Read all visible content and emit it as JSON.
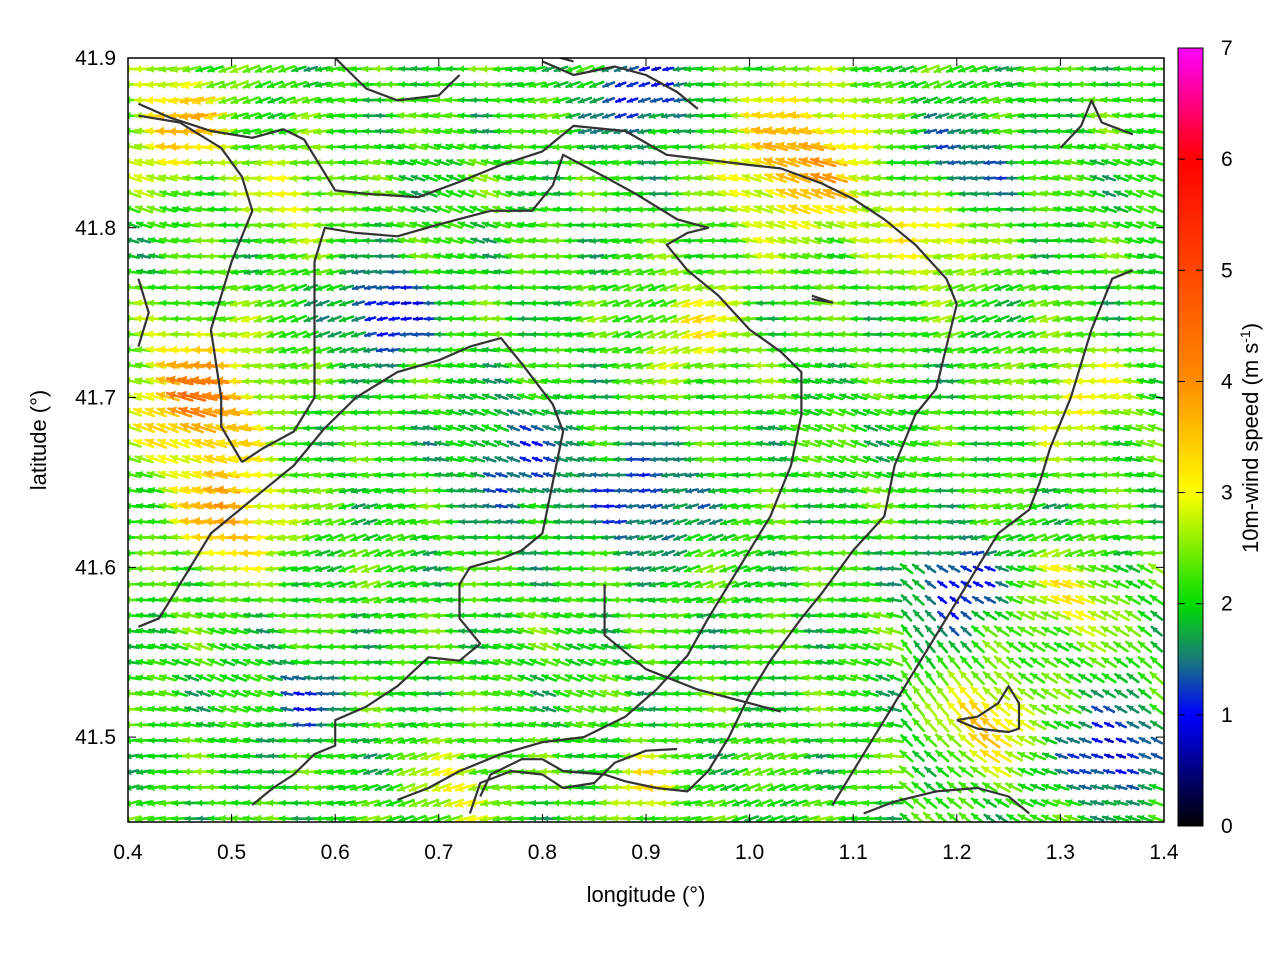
{
  "chart_data": {
    "type": "vector-field",
    "xlabel": "longitude (°)",
    "ylabel": "latitude (°)",
    "xlim": [
      0.4,
      1.4
    ],
    "ylim": [
      41.45,
      41.9
    ],
    "x_ticks": [
      "0.4",
      "0.5",
      "0.6",
      "0.7",
      "0.8",
      "0.9",
      "1.0",
      "1.1",
      "1.2",
      "1.3",
      "1.4"
    ],
    "y_ticks": [
      "41.5",
      "41.6",
      "41.7",
      "41.8",
      "41.9"
    ],
    "colorbar": {
      "label_main": "10m-wind speed (m s",
      "label_sup": "-1",
      "label_end": ")",
      "range": [
        0,
        7
      ],
      "ticks": [
        "0",
        "1",
        "2",
        "3",
        "4",
        "5",
        "6",
        "7"
      ],
      "palette": [
        "#000000",
        "#0000ff",
        "#1a7a7a",
        "#00dd00",
        "#ffff00",
        "#ff8c00",
        "#ff0000",
        "#ff00ff"
      ]
    },
    "wind_direction": "mostly from east (vectors point west)",
    "grid": false,
    "speed_regions": [
      {
        "lon": 0.47,
        "lat": 41.7,
        "speed": 4.2,
        "spread": 0.06
      },
      {
        "lon": 0.5,
        "lat": 41.63,
        "speed": 3.8,
        "spread": 0.05
      },
      {
        "lon": 0.45,
        "lat": 41.86,
        "speed": 3.6,
        "spread": 0.05
      },
      {
        "lon": 0.56,
        "lat": 41.82,
        "speed": 3.0,
        "spread": 0.04
      },
      {
        "lon": 1.05,
        "lat": 41.84,
        "speed": 3.8,
        "spread": 0.07
      },
      {
        "lon": 1.18,
        "lat": 41.8,
        "speed": 3.5,
        "spread": 0.05
      },
      {
        "lon": 0.95,
        "lat": 41.74,
        "speed": 3.0,
        "spread": 0.05
      },
      {
        "lon": 1.32,
        "lat": 41.7,
        "speed": 3.0,
        "spread": 0.05
      },
      {
        "lon": 1.23,
        "lat": 41.51,
        "speed": 3.6,
        "spread": 0.04
      },
      {
        "lon": 1.31,
        "lat": 41.58,
        "speed": 3.1,
        "spread": 0.04
      },
      {
        "lon": 0.72,
        "lat": 41.47,
        "speed": 3.0,
        "spread": 0.04
      },
      {
        "lon": 0.9,
        "lat": 41.47,
        "speed": 3.2,
        "spread": 0.03
      },
      {
        "lon": 0.78,
        "lat": 41.66,
        "speed": 1.3,
        "spread": 0.06
      },
      {
        "lon": 0.9,
        "lat": 41.64,
        "speed": 1.1,
        "spread": 0.05
      },
      {
        "lon": 0.65,
        "lat": 41.75,
        "speed": 0.7,
        "spread": 0.04
      },
      {
        "lon": 1.2,
        "lat": 41.83,
        "speed": 1.0,
        "spread": 0.05
      },
      {
        "lon": 1.2,
        "lat": 41.59,
        "speed": 0.8,
        "spread": 0.04
      },
      {
        "lon": 0.57,
        "lat": 41.52,
        "speed": 1.3,
        "spread": 0.04
      },
      {
        "lon": 0.9,
        "lat": 41.88,
        "speed": 1.0,
        "spread": 0.05
      },
      {
        "lon": 1.35,
        "lat": 41.49,
        "speed": 0.6,
        "spread": 0.04
      }
    ],
    "contours": [
      [
        [
          0.41,
          41.873
        ],
        [
          0.44,
          41.865
        ],
        [
          0.48,
          41.857
        ],
        [
          0.52,
          41.853
        ],
        [
          0.55,
          41.858
        ],
        [
          0.57,
          41.852
        ],
        [
          0.6,
          41.822
        ],
        [
          0.63,
          41.82
        ],
        [
          0.68,
          41.818
        ],
        [
          0.72,
          41.827
        ],
        [
          0.76,
          41.837
        ],
        [
          0.8,
          41.845
        ],
        [
          0.83,
          41.86
        ],
        [
          0.88,
          41.857
        ],
        [
          0.92,
          41.843
        ],
        [
          0.96,
          41.84
        ],
        [
          1.0,
          41.837
        ],
        [
          1.03,
          41.835
        ],
        [
          1.07,
          41.826
        ],
        [
          1.1,
          41.817
        ],
        [
          1.13,
          41.805
        ],
        [
          1.16,
          41.79
        ],
        [
          1.19,
          41.77
        ],
        [
          1.2,
          41.755
        ],
        [
          1.19,
          41.73
        ],
        [
          1.18,
          41.705
        ],
        [
          1.16,
          41.69
        ],
        [
          1.14,
          41.66
        ],
        [
          1.13,
          41.63
        ],
        [
          1.1,
          41.61
        ],
        [
          1.07,
          41.585
        ],
        [
          1.05,
          41.57
        ],
        [
          1.02,
          41.545
        ],
        [
          1.0,
          41.525
        ],
        [
          0.98,
          41.5
        ],
        [
          0.96,
          41.48
        ],
        [
          0.94,
          41.468
        ],
        [
          0.91,
          41.47
        ],
        [
          0.88,
          41.474
        ],
        [
          0.86,
          41.478
        ],
        [
          0.82,
          41.48
        ],
        [
          0.8,
          41.487
        ],
        [
          0.78,
          41.487
        ],
        [
          0.75,
          41.478
        ],
        [
          0.74,
          41.465
        ]
      ],
      [
        [
          0.41,
          41.866
        ],
        [
          0.45,
          41.862
        ],
        [
          0.49,
          41.847
        ],
        [
          0.51,
          41.83
        ],
        [
          0.52,
          41.81
        ],
        [
          0.5,
          41.78
        ],
        [
          0.49,
          41.76
        ],
        [
          0.48,
          41.74
        ],
        [
          0.49,
          41.7
        ],
        [
          0.49,
          41.683
        ],
        [
          0.51,
          41.662
        ]
      ],
      [
        [
          0.51,
          41.662
        ],
        [
          0.53,
          41.67
        ],
        [
          0.56,
          41.68
        ],
        [
          0.58,
          41.7
        ],
        [
          0.58,
          41.74
        ],
        [
          0.58,
          41.78
        ],
        [
          0.59,
          41.8
        ],
        [
          0.62,
          41.797
        ],
        [
          0.66,
          41.795
        ],
        [
          0.7,
          41.802
        ],
        [
          0.75,
          41.81
        ],
        [
          0.79,
          41.81
        ],
        [
          0.81,
          41.825
        ],
        [
          0.82,
          41.843
        ],
        [
          0.86,
          41.83
        ],
        [
          0.89,
          41.82
        ],
        [
          0.93,
          41.805
        ],
        [
          0.96,
          41.8
        ],
        [
          0.94,
          41.797
        ],
        [
          0.92,
          41.79
        ],
        [
          0.94,
          41.775
        ],
        [
          0.97,
          41.76
        ],
        [
          1.0,
          41.74
        ],
        [
          1.03,
          41.727
        ],
        [
          1.05,
          41.715
        ],
        [
          1.05,
          41.69
        ],
        [
          1.04,
          41.66
        ],
        [
          1.02,
          41.63
        ],
        [
          1.0,
          41.61
        ],
        [
          0.98,
          41.59
        ],
        [
          0.96,
          41.57
        ],
        [
          0.94,
          41.548
        ],
        [
          0.91,
          41.528
        ],
        [
          0.88,
          41.512
        ],
        [
          0.84,
          41.5
        ],
        [
          0.8,
          41.497
        ],
        [
          0.76,
          41.49
        ],
        [
          0.72,
          41.48
        ],
        [
          0.69,
          41.47
        ],
        [
          0.66,
          41.463
        ]
      ],
      [
        [
          0.41,
          41.565
        ],
        [
          0.43,
          41.57
        ],
        [
          0.46,
          41.6
        ],
        [
          0.48,
          41.62
        ],
        [
          0.52,
          41.64
        ],
        [
          0.56,
          41.66
        ],
        [
          0.59,
          41.682
        ],
        [
          0.62,
          41.7
        ],
        [
          0.66,
          41.715
        ],
        [
          0.7,
          41.722
        ],
        [
          0.73,
          41.73
        ],
        [
          0.76,
          41.735
        ],
        [
          0.78,
          41.72
        ],
        [
          0.81,
          41.696
        ],
        [
          0.82,
          41.68
        ],
        [
          0.81,
          41.65
        ],
        [
          0.8,
          41.62
        ],
        [
          0.78,
          41.61
        ],
        [
          0.76,
          41.605
        ],
        [
          0.73,
          41.6
        ],
        [
          0.72,
          41.59
        ],
        [
          0.72,
          41.57
        ],
        [
          0.74,
          41.555
        ],
        [
          0.72,
          41.545
        ],
        [
          0.69,
          41.547
        ],
        [
          0.66,
          41.53
        ],
        [
          0.63,
          41.518
        ],
        [
          0.6,
          41.51
        ],
        [
          0.6,
          41.495
        ],
        [
          0.58,
          41.49
        ],
        [
          0.56,
          41.478
        ],
        [
          0.54,
          41.47
        ],
        [
          0.52,
          41.46
        ]
      ],
      [
        [
          1.37,
          41.855
        ],
        [
          1.34,
          41.862
        ],
        [
          1.33,
          41.875
        ],
        [
          1.32,
          41.86
        ],
        [
          1.3,
          41.847
        ]
      ],
      [
        [
          1.37,
          41.775
        ],
        [
          1.35,
          41.77
        ],
        [
          1.33,
          41.74
        ],
        [
          1.31,
          41.7
        ],
        [
          1.29,
          41.67
        ],
        [
          1.28,
          41.65
        ],
        [
          1.27,
          41.634
        ],
        [
          1.24,
          41.62
        ],
        [
          1.22,
          41.6
        ],
        [
          1.2,
          41.58
        ],
        [
          1.18,
          41.56
        ],
        [
          1.16,
          41.54
        ],
        [
          1.14,
          41.52
        ],
        [
          1.12,
          41.5
        ],
        [
          1.1,
          41.48
        ],
        [
          1.08,
          41.46
        ]
      ],
      [
        [
          0.86,
          41.59
        ],
        [
          0.86,
          41.56
        ],
        [
          0.9,
          41.54
        ],
        [
          0.95,
          41.528
        ],
        [
          1.0,
          41.52
        ],
        [
          1.03,
          41.515
        ]
      ],
      [
        [
          1.2,
          41.51
        ],
        [
          1.22,
          41.512
        ],
        [
          1.24,
          41.52
        ],
        [
          1.25,
          41.53
        ],
        [
          1.26,
          41.52
        ],
        [
          1.26,
          41.505
        ],
        [
          1.25,
          41.503
        ],
        [
          1.22,
          41.505
        ],
        [
          1.2,
          41.51
        ]
      ],
      [
        [
          1.11,
          41.455
        ],
        [
          1.14,
          41.462
        ],
        [
          1.18,
          41.468
        ],
        [
          1.22,
          41.47
        ],
        [
          1.25,
          41.465
        ],
        [
          1.27,
          41.455
        ]
      ],
      [
        [
          0.73,
          41.455
        ],
        [
          0.74,
          41.473
        ],
        [
          0.77,
          41.48
        ],
        [
          0.8,
          41.478
        ],
        [
          0.82,
          41.47
        ],
        [
          0.85,
          41.473
        ],
        [
          0.87,
          41.485
        ],
        [
          0.9,
          41.492
        ],
        [
          0.93,
          41.493
        ]
      ],
      [
        [
          0.6,
          41.9
        ],
        [
          0.63,
          41.882
        ],
        [
          0.66,
          41.875
        ],
        [
          0.7,
          41.878
        ],
        [
          0.72,
          41.89
        ]
      ],
      [
        [
          0.8,
          41.898
        ],
        [
          0.83,
          41.89
        ],
        [
          0.87,
          41.895
        ],
        [
          0.9,
          41.89
        ],
        [
          0.93,
          41.88
        ],
        [
          0.95,
          41.87
        ]
      ],
      [
        [
          0.41,
          41.77
        ],
        [
          0.42,
          41.75
        ],
        [
          0.41,
          41.73
        ]
      ],
      [
        [
          0.77,
          41.91
        ],
        [
          0.8,
          41.903
        ],
        [
          0.83,
          41.898
        ]
      ],
      [
        [
          1.06,
          41.76
        ],
        [
          1.07,
          41.758
        ],
        [
          1.08,
          41.756
        ],
        [
          1.06,
          41.758
        ]
      ]
    ]
  }
}
